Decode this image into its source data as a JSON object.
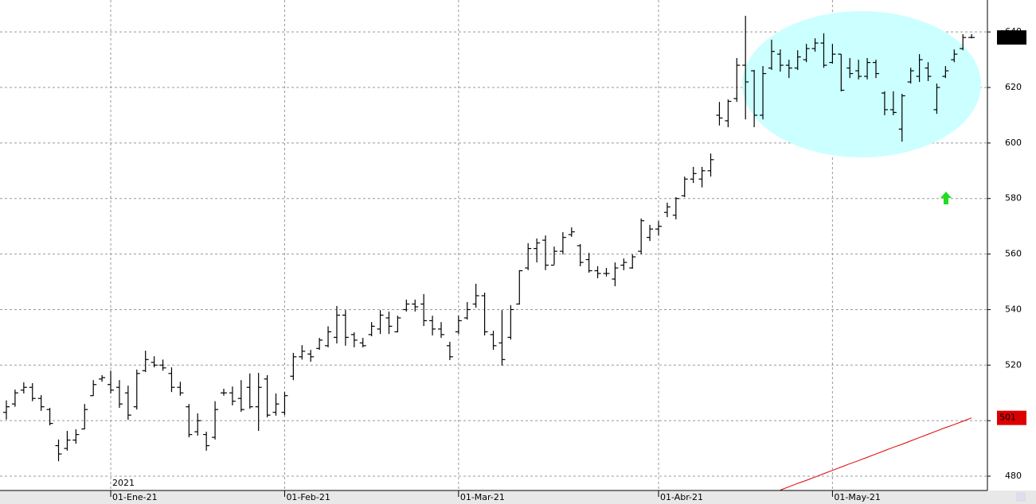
{
  "chart_data": {
    "type": "ohlc",
    "year_label": "2021",
    "categories": [
      null,
      null,
      null,
      null,
      null,
      null,
      null,
      null,
      null,
      null,
      null,
      null,
      "01-Ene-21",
      null,
      null,
      null,
      null,
      null,
      null,
      null,
      null,
      null,
      null,
      null,
      null,
      null,
      null,
      null,
      null,
      null,
      null,
      null,
      "01-Feb-21",
      null,
      null,
      null,
      null,
      null,
      null,
      null,
      null,
      null,
      null,
      null,
      null,
      null,
      null,
      null,
      null,
      null,
      null,
      null,
      "01-Mar-21",
      null,
      null,
      null,
      null,
      null,
      null,
      null,
      null,
      null,
      null,
      null,
      null,
      null,
      null,
      null,
      null,
      null,
      null,
      null,
      null,
      null,
      null,
      "01-Abr-21",
      null,
      null,
      null,
      null,
      null,
      null,
      null,
      null,
      null,
      null,
      null,
      null,
      null,
      null,
      null,
      null,
      null,
      null,
      null,
      "01-May-21",
      null,
      null,
      null,
      null,
      null,
      null,
      null,
      null,
      null,
      null,
      null,
      null,
      null,
      null,
      null,
      null
    ],
    "ohlc": [
      [
        503,
        507.3,
        500.4,
        505
      ],
      [
        506,
        511.2,
        505,
        510
      ],
      [
        511,
        513.8,
        509.8,
        512
      ],
      [
        512,
        513.5,
        507,
        508
      ],
      [
        508,
        509.2,
        503.5,
        505
      ],
      [
        504,
        504.6,
        498.3,
        499
      ],
      [
        491,
        493.2,
        485.4,
        488
      ],
      [
        490,
        496.3,
        489.2,
        493
      ],
      [
        493,
        496.9,
        491.7,
        495
      ],
      [
        497,
        506,
        496.9,
        504
      ],
      [
        509,
        514.6,
        508.9,
        513
      ],
      [
        515,
        516.4,
        514,
        515.5
      ],
      [
        513,
        518,
        509.8,
        511
      ],
      [
        512,
        514.6,
        504.6,
        506
      ],
      [
        510,
        512.6,
        500.3,
        502
      ],
      [
        505,
        518.4,
        504,
        517
      ],
      [
        518,
        525.2,
        517.5,
        522
      ],
      [
        521,
        523.2,
        519.2,
        520
      ],
      [
        520,
        522,
        518,
        519
      ],
      [
        517,
        519.2,
        510.3,
        512
      ],
      [
        512,
        514,
        509,
        510
      ],
      [
        505,
        506,
        494,
        495
      ],
      [
        496,
        502.6,
        494.6,
        500
      ],
      [
        495,
        496,
        489.2,
        491
      ],
      [
        494,
        507,
        493.2,
        504
      ],
      [
        510,
        511.5,
        509,
        510
      ],
      [
        510,
        512.3,
        505.5,
        507
      ],
      [
        508,
        514.6,
        503.2,
        504
      ],
      [
        512,
        517,
        504.3,
        505
      ],
      [
        505,
        517.2,
        496.3,
        512
      ],
      [
        515,
        516.4,
        501.2,
        502
      ],
      [
        503,
        509.8,
        501.8,
        506
      ],
      [
        503,
        510.3,
        502,
        509
      ],
      [
        516,
        524.4,
        514.6,
        523
      ],
      [
        523,
        527.2,
        522,
        525
      ],
      [
        524,
        525.5,
        521.2,
        523
      ],
      [
        526,
        529.8,
        525.5,
        529
      ],
      [
        527,
        534,
        526.4,
        532
      ],
      [
        530,
        541.3,
        527.8,
        538
      ],
      [
        538,
        539.8,
        527,
        530
      ],
      [
        531,
        531.8,
        526.4,
        529
      ],
      [
        528,
        529.8,
        526.4,
        527
      ],
      [
        531,
        535.5,
        530.4,
        534
      ],
      [
        533,
        539.8,
        531.2,
        538
      ],
      [
        537,
        539.3,
        531.2,
        534
      ],
      [
        532,
        537.8,
        531.8,
        537
      ],
      [
        540,
        543.6,
        539.3,
        542
      ],
      [
        542,
        543.6,
        539.3,
        541
      ],
      [
        542,
        545.6,
        534.1,
        536
      ],
      [
        536,
        537.8,
        530.7,
        533
      ],
      [
        533,
        535.5,
        529.8,
        531
      ],
      [
        527,
        528.4,
        521.8,
        523
      ],
      [
        532,
        537.8,
        531.2,
        536
      ],
      [
        537,
        542.7,
        536.4,
        540
      ],
      [
        542,
        549.3,
        540.7,
        545
      ],
      [
        545,
        546.1,
        530.7,
        532
      ],
      [
        531,
        532.4,
        525.5,
        527
      ],
      [
        528,
        539.8,
        519.8,
        522
      ],
      [
        530,
        541.6,
        529.2,
        540
      ],
      [
        542,
        554.2,
        541.8,
        554
      ],
      [
        555,
        563.9,
        554.2,
        562
      ],
      [
        562,
        565.6,
        557,
        564
      ],
      [
        565,
        566.7,
        554.2,
        556
      ],
      [
        556,
        562.7,
        556.2,
        561
      ],
      [
        561,
        567.9,
        559.9,
        566
      ],
      [
        567,
        569.6,
        566.2,
        568
      ],
      [
        563,
        563.6,
        555.6,
        557
      ],
      [
        558,
        560.4,
        553.3,
        554
      ],
      [
        554,
        555.6,
        551.3,
        553
      ],
      [
        553,
        555,
        551.9,
        553
      ],
      [
        551,
        557,
        548.4,
        555
      ],
      [
        556,
        558.4,
        554.2,
        557
      ],
      [
        555,
        559.9,
        554.7,
        559
      ],
      [
        561,
        572.8,
        559.9,
        572
      ],
      [
        566,
        570.5,
        564.7,
        569
      ],
      [
        569,
        571.9,
        566.7,
        570
      ],
      [
        575,
        578.5,
        573.3,
        577
      ],
      [
        574,
        580.5,
        572.5,
        580
      ],
      [
        581,
        587.9,
        580.5,
        587
      ],
      [
        587,
        591.4,
        585.6,
        589
      ],
      [
        587,
        591.4,
        584,
        590
      ],
      [
        590,
        596.2,
        587.9,
        594
      ],
      [
        610,
        614.8,
        606.3,
        609
      ],
      [
        608,
        615.7,
        605.7,
        615
      ],
      [
        616,
        630.6,
        614.8,
        628
      ],
      [
        628,
        645.8,
        608.5,
        622
      ],
      [
        626,
        626.3,
        605.7,
        610
      ],
      [
        610,
        627.7,
        608.5,
        625
      ],
      [
        627,
        637.2,
        626.3,
        633
      ],
      [
        632,
        633.7,
        625.7,
        628
      ],
      [
        628,
        630,
        623.4,
        627
      ],
      [
        627,
        633.4,
        626.3,
        631
      ],
      [
        630,
        635.7,
        629.1,
        634
      ],
      [
        634,
        637.7,
        632.9,
        636
      ],
      [
        636,
        639.5,
        627.1,
        628
      ],
      [
        629,
        635.7,
        628.6,
        632
      ],
      [
        632,
        632,
        618.6,
        619
      ],
      [
        627,
        630.6,
        623.4,
        625
      ],
      [
        626,
        630,
        622.9,
        624
      ],
      [
        624,
        630.6,
        622.9,
        629
      ],
      [
        629,
        630,
        623.4,
        625
      ],
      [
        618,
        618.6,
        610,
        612
      ],
      [
        612,
        618.6,
        610,
        611
      ],
      [
        605,
        617.7,
        600.5,
        617
      ],
      [
        622,
        627.1,
        621.4,
        626
      ],
      [
        624,
        632,
        622,
        630
      ],
      [
        627,
        629.1,
        622.3,
        624
      ],
      [
        612,
        621.4,
        610.5,
        620
      ],
      [
        624,
        627.7,
        623.4,
        626
      ],
      [
        630,
        633.7,
        629.1,
        632
      ],
      [
        634,
        639.2,
        633.4,
        638
      ],
      [
        638,
        639.2,
        637.7,
        638
      ]
    ],
    "bar_color": "#000000",
    "ma": {
      "color": "#dd0000",
      "values": [
        null,
        null,
        null,
        null,
        null,
        null,
        null,
        null,
        null,
        null,
        null,
        null,
        null,
        null,
        null,
        null,
        null,
        null,
        null,
        null,
        null,
        null,
        null,
        null,
        null,
        null,
        null,
        null,
        null,
        null,
        null,
        null,
        null,
        null,
        null,
        null,
        null,
        null,
        null,
        null,
        null,
        null,
        null,
        null,
        null,
        null,
        null,
        null,
        null,
        null,
        null,
        null,
        null,
        null,
        null,
        null,
        null,
        null,
        null,
        null,
        null,
        null,
        null,
        null,
        null,
        null,
        null,
        null,
        null,
        null,
        null,
        null,
        null,
        null,
        null,
        null,
        null,
        null,
        null,
        null,
        null,
        null,
        null,
        null,
        null,
        null,
        null,
        null,
        null,
        475.0,
        476.2,
        477.4,
        478.5,
        479.7,
        480.9,
        482.1,
        483.3,
        484.5,
        485.6,
        486.8,
        488.0,
        489.2,
        490.4,
        491.5,
        492.7,
        493.9,
        495.1,
        496.3,
        497.5,
        498.6,
        499.8,
        501.0
      ]
    },
    "last_price": 638,
    "ma_last": 501,
    "ylim": [
      474.85,
      651.5
    ],
    "yticks": [
      480,
      500,
      520,
      540,
      560,
      580,
      600,
      620,
      640
    ],
    "grid": true
  }
}
